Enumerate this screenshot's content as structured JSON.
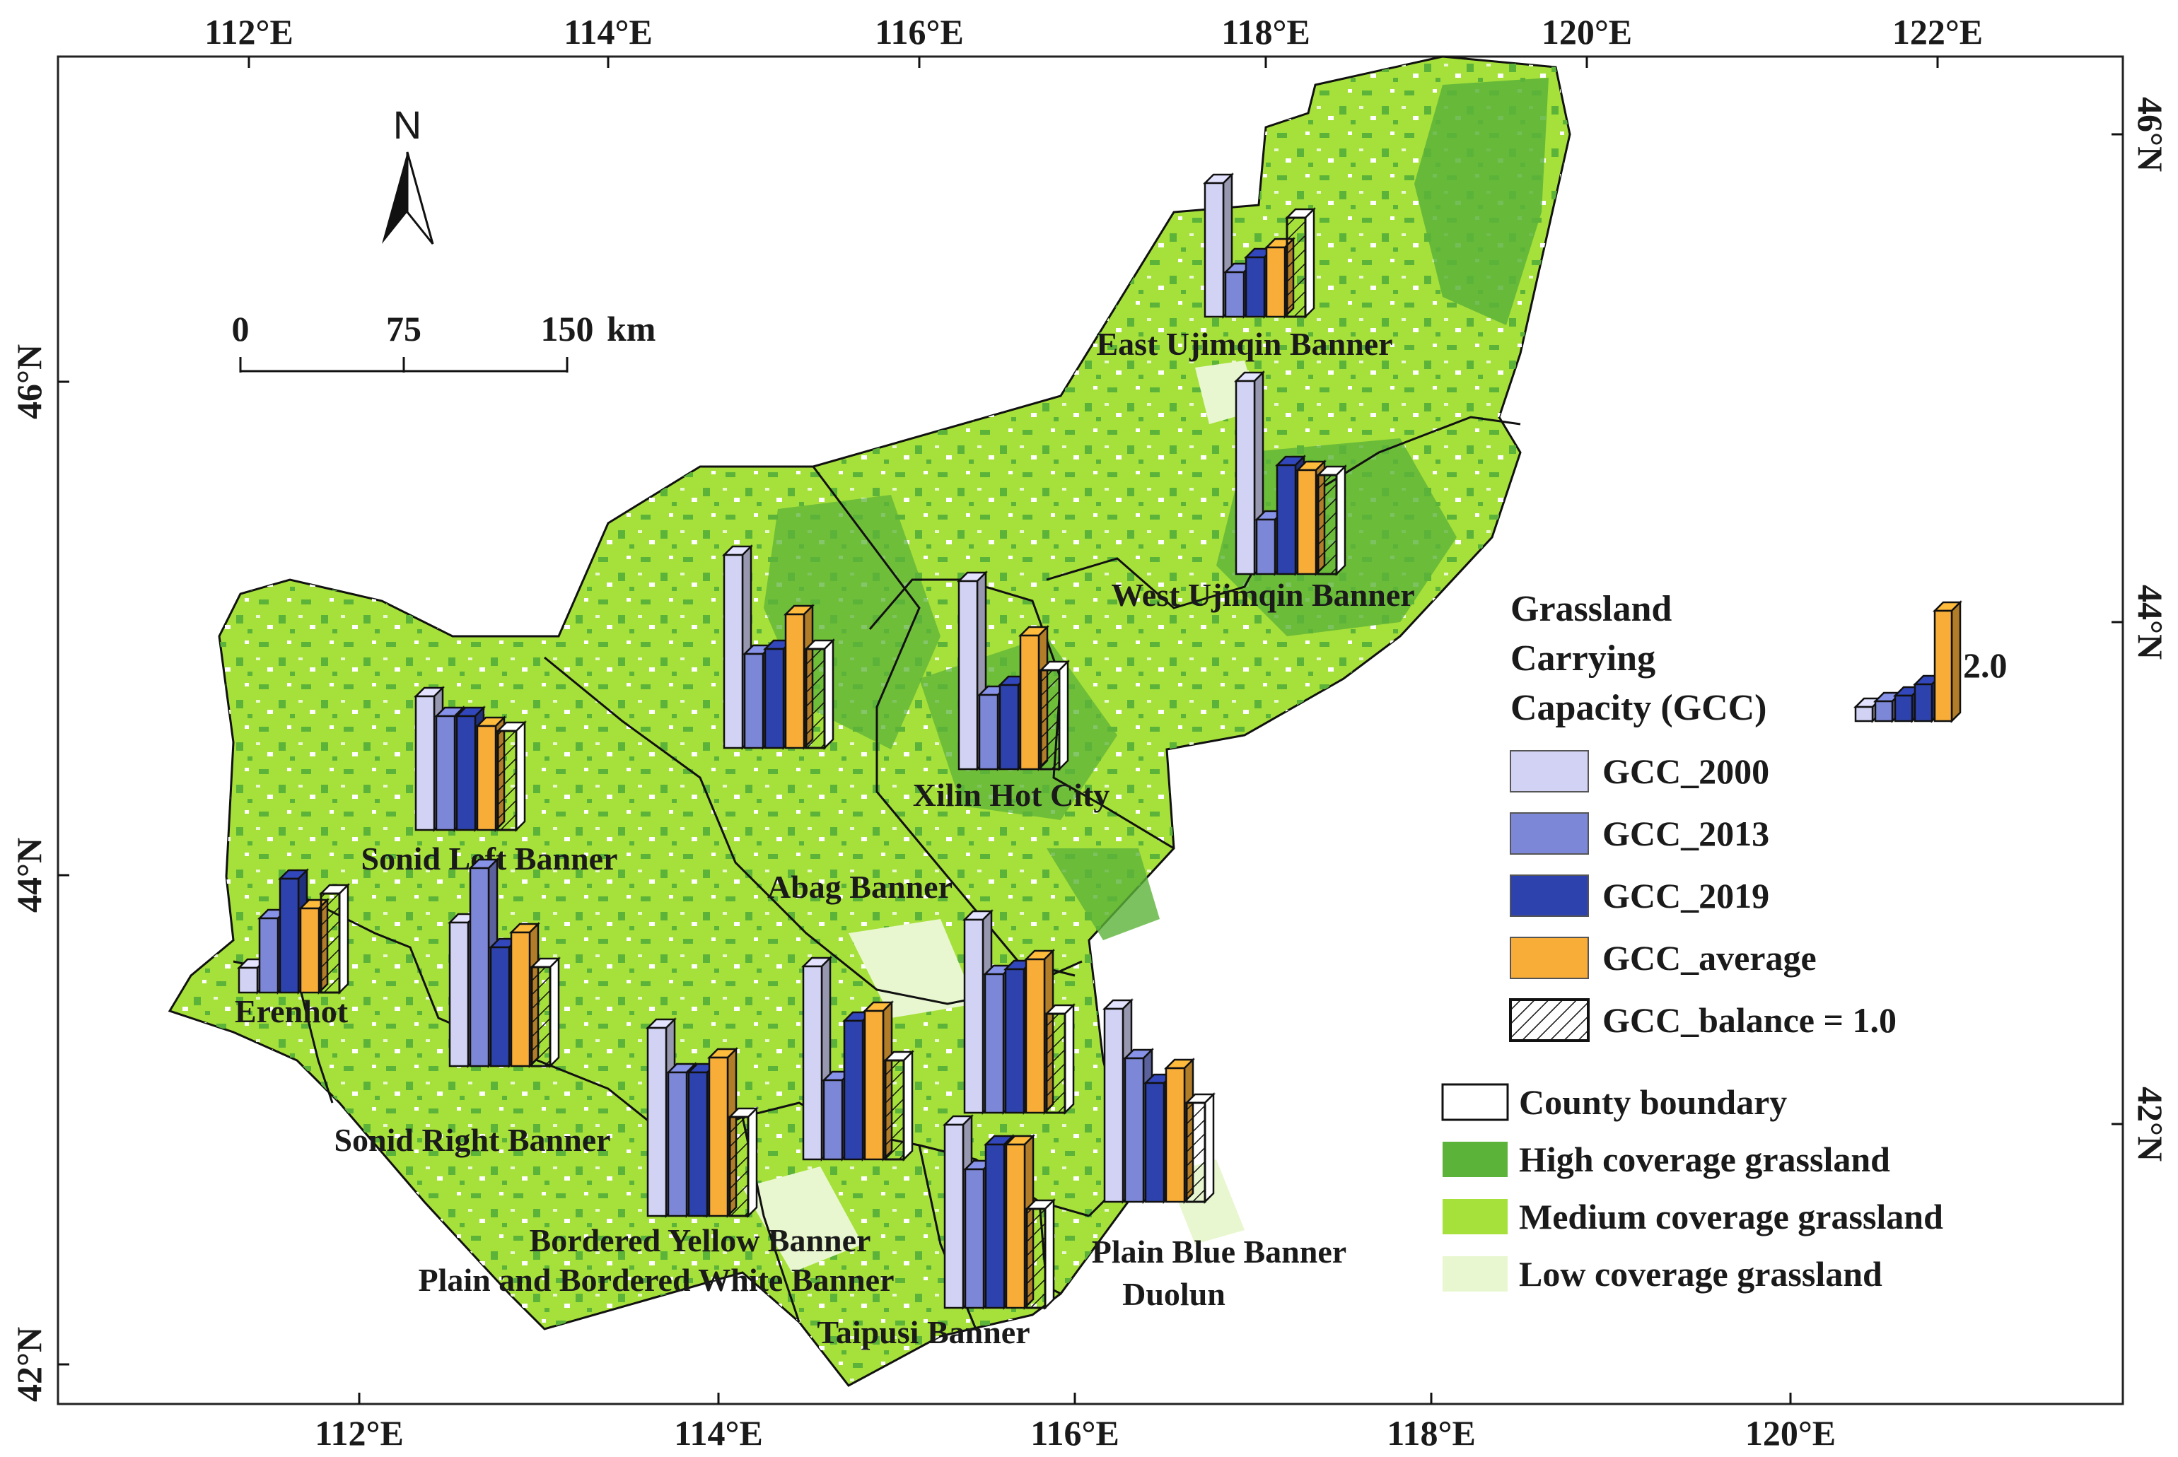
{
  "map": {
    "top_ticks": [
      "112°E",
      "114°E",
      "116°E",
      "118°E",
      "120°E",
      "122°E"
    ],
    "bottom_ticks": [
      "112°E",
      "114°E",
      "116°E",
      "118°E",
      "120°E"
    ],
    "left_ticks": [
      "46°N",
      "44°N",
      "42°N"
    ],
    "right_ticks": [
      "46°N",
      "44°N",
      "42°N"
    ]
  },
  "north_arrow": {
    "label": "N"
  },
  "scale_bar": {
    "labels": [
      "0",
      "75",
      "150"
    ],
    "unit": "km"
  },
  "counties": [
    {
      "id": "east-ujimqin",
      "name": "East Ujimqin Banner",
      "gcc": {
        "y2000": 1.35,
        "y2013": 0.45,
        "y2019": 0.6,
        "average": 0.7,
        "balance": 1.0
      }
    },
    {
      "id": "west-ujimqin",
      "name": "West Ujimqin Banner",
      "gcc": {
        "y2000": 1.95,
        "y2013": 0.55,
        "y2019": 1.1,
        "average": 1.05,
        "balance": 1.0
      }
    },
    {
      "id": "xilin-hot",
      "name": "Xilin Hot City",
      "gcc": {
        "y2000": 1.9,
        "y2013": 0.75,
        "y2019": 0.85,
        "average": 1.35,
        "balance": 1.0
      }
    },
    {
      "id": "abag",
      "name": "Abag Banner",
      "gcc": {
        "y2000": 1.95,
        "y2013": 0.95,
        "y2019": 1.0,
        "average": 1.35,
        "balance": 1.0
      }
    },
    {
      "id": "sonid-left",
      "name": "Sonid Left Banner",
      "gcc": {
        "y2000": 1.35,
        "y2013": 1.15,
        "y2019": 1.15,
        "average": 1.05,
        "balance": 1.0
      }
    },
    {
      "id": "erenhot",
      "name": "Erenhot",
      "gcc": {
        "y2000": 0.25,
        "y2013": 0.75,
        "y2019": 1.15,
        "average": 0.85,
        "balance": 1.0
      }
    },
    {
      "id": "sonid-right",
      "name": "Sonid Right Banner",
      "gcc": {
        "y2000": 1.45,
        "y2013": 2.0,
        "y2019": 1.2,
        "average": 1.35,
        "balance": 1.0
      }
    },
    {
      "id": "bordered-yellow",
      "name": "Bordered Yellow Banner",
      "gcc": {
        "y2000": 1.9,
        "y2013": 1.45,
        "y2019": 1.45,
        "average": 1.6,
        "balance": 1.0
      }
    },
    {
      "id": "plain-bordered-white",
      "name": "Plain and Bordered White Banner",
      "gcc": {
        "y2000": 1.95,
        "y2013": 0.8,
        "y2019": 1.4,
        "average": 1.5,
        "balance": 1.0
      }
    },
    {
      "id": "taipusi",
      "name": "Taipusi Banner",
      "gcc": {
        "y2000": 1.85,
        "y2013": 1.4,
        "y2019": 1.65,
        "average": 1.65,
        "balance": 1.0
      }
    },
    {
      "id": "plain-blue",
      "name": "Plain Blue Banner",
      "gcc": {
        "y2000": 1.95,
        "y2013": 1.4,
        "y2019": 1.45,
        "average": 1.55,
        "balance": 1.0
      }
    },
    {
      "id": "duolun",
      "name": "Duolun",
      "gcc": {
        "y2000": 1.95,
        "y2013": 1.45,
        "y2019": 1.2,
        "average": 1.35,
        "balance": 1.0
      }
    }
  ],
  "legend": {
    "title_lines": [
      "Grassland",
      "Carrying",
      "Capacity (GCC)"
    ],
    "reference_value": "2.0",
    "gcc_items": [
      {
        "key": "gcc2000",
        "label": "GCC_2000",
        "color": "#d2d2f5"
      },
      {
        "key": "gcc2013",
        "label": "GCC_2013",
        "color": "#7d87d8"
      },
      {
        "key": "gcc2019",
        "label": "GCC_2019",
        "color": "#2e42ad"
      },
      {
        "key": "gccavg",
        "label": "GCC_average",
        "color": "#f7ad38"
      },
      {
        "key": "gccbal",
        "label": "GCC_balance = 1.0",
        "color": "#ffffff"
      }
    ],
    "land_items": [
      {
        "key": "county",
        "label": "County boundary",
        "color": "#ffffff"
      },
      {
        "key": "high",
        "label": "High coverage grassland",
        "color": "#5cb33a"
      },
      {
        "key": "medium",
        "label": "Medium coverage grassland",
        "color": "#a6e03a"
      },
      {
        "key": "low",
        "label": "Low coverage grassland",
        "color": "#e8f7cf"
      }
    ]
  }
}
